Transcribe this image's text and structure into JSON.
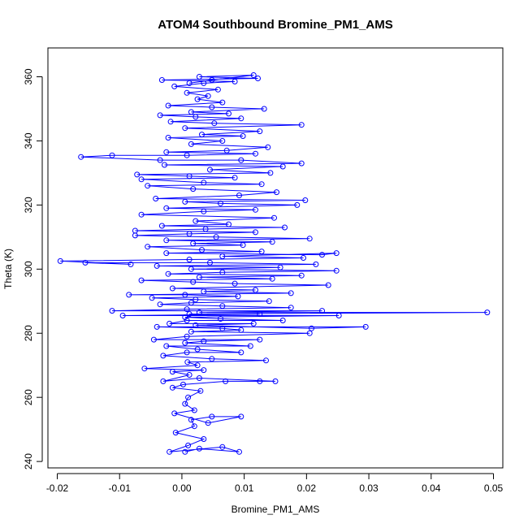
{
  "chart_data": {
    "type": "scatter",
    "title": "ATOM4 Southbound Bromine_PM1_AMS",
    "xlabel": "Bromine_PM1_AMS",
    "ylabel": "Theta (K)",
    "xlim": [
      -0.0215,
      0.0515
    ],
    "ylim": [
      238,
      369
    ],
    "x_ticks": [
      -0.02,
      -0.01,
      0,
      0.01,
      0.02,
      0.03,
      0.04,
      0.05
    ],
    "x_tick_labels": [
      "-0.02",
      "-0.01",
      "0.00",
      "0.01",
      "0.02",
      "0.03",
      "0.04",
      "0.05"
    ],
    "y_ticks": [
      240,
      260,
      280,
      300,
      320,
      340,
      360
    ],
    "y_tick_labels": [
      "240",
      "260",
      "280",
      "300",
      "320",
      "340",
      "360"
    ],
    "grid": false,
    "legend": "none",
    "marker": "open-circle",
    "connect_points": true,
    "color": "#0000ff",
    "series": [
      {
        "values": [
          [
            0.0005,
            243
          ],
          [
            0.0028,
            244
          ],
          [
            0.0092,
            243
          ],
          [
            0.0065,
            244.5
          ],
          [
            -0.002,
            243
          ],
          [
            0.001,
            245
          ],
          [
            0.0035,
            247
          ],
          [
            -0.001,
            249
          ],
          [
            0.002,
            251
          ],
          [
            0.0015,
            253
          ],
          [
            0.0048,
            254
          ],
          [
            0.0095,
            254
          ],
          [
            0.0042,
            252
          ],
          [
            -0.0012,
            255
          ],
          [
            0.002,
            256
          ],
          [
            0.0005,
            258
          ],
          [
            0.001,
            260
          ],
          [
            0.003,
            262
          ],
          [
            -0.0015,
            263
          ],
          [
            0.0002,
            264
          ],
          [
            0.007,
            265
          ],
          [
            0.0125,
            265
          ],
          [
            0.015,
            265
          ],
          [
            0.0028,
            266
          ],
          [
            -0.003,
            265
          ],
          [
            0.0012,
            267
          ],
          [
            -0.0015,
            268
          ],
          [
            0.0035,
            268.5
          ],
          [
            -0.006,
            269
          ],
          [
            0.0025,
            270
          ],
          [
            0.0009,
            271
          ],
          [
            0.0135,
            271.5
          ],
          [
            0.0048,
            272
          ],
          [
            -0.003,
            273
          ],
          [
            0.0008,
            274
          ],
          [
            0.0095,
            274
          ],
          [
            0.0025,
            275
          ],
          [
            -0.0025,
            276
          ],
          [
            0.011,
            276
          ],
          [
            0.0005,
            277
          ],
          [
            0.0035,
            277.5
          ],
          [
            0.0125,
            278
          ],
          [
            -0.0045,
            278
          ],
          [
            0.0008,
            279
          ],
          [
            0.0205,
            280
          ],
          [
            0.0015,
            280.5
          ],
          [
            0.0095,
            281
          ],
          [
            0.0065,
            281.5
          ],
          [
            -0.004,
            282
          ],
          [
            0.0295,
            282
          ],
          [
            0.0208,
            281.5
          ],
          [
            0.0022,
            282.5
          ],
          [
            0.0115,
            283
          ],
          [
            -0.002,
            283
          ],
          [
            0.0008,
            284
          ],
          [
            0.0162,
            284
          ],
          [
            0.0062,
            284.5
          ],
          [
            0.0005,
            285
          ],
          [
            0.0252,
            285.5
          ],
          [
            -0.0095,
            285.5
          ],
          [
            0.0125,
            286
          ],
          [
            0.0012,
            286
          ],
          [
            0.049,
            286.5
          ],
          [
            0.0028,
            286.5
          ],
          [
            0.0225,
            287
          ],
          [
            -0.0112,
            287
          ],
          [
            0.0008,
            287.5
          ],
          [
            0.0175,
            288
          ],
          [
            0.0065,
            288.5
          ],
          [
            -0.0035,
            289
          ],
          [
            0.0015,
            289.5
          ],
          [
            0.014,
            290
          ],
          [
            0.0022,
            290.5
          ],
          [
            -0.0048,
            291
          ],
          [
            0.009,
            291.5
          ],
          [
            0.0005,
            292
          ],
          [
            -0.0085,
            292
          ],
          [
            0.0175,
            292.5
          ],
          [
            0.0035,
            293
          ],
          [
            0.0118,
            293.5
          ],
          [
            -0.0015,
            294
          ],
          [
            0.0235,
            295
          ],
          [
            0.0085,
            295.5
          ],
          [
            0.0018,
            296
          ],
          [
            -0.0065,
            296.5
          ],
          [
            0.0145,
            297
          ],
          [
            0.0028,
            297.5
          ],
          [
            0.0192,
            298
          ],
          [
            -0.0022,
            298.5
          ],
          [
            0.0065,
            299
          ],
          [
            0.0248,
            299.5
          ],
          [
            0.0015,
            300
          ],
          [
            0.0158,
            300.5
          ],
          [
            -0.004,
            301
          ],
          [
            0.0215,
            301.5
          ],
          [
            0.0045,
            302
          ],
          [
            -0.0155,
            302
          ],
          [
            -0.0082,
            301.5
          ],
          [
            -0.0195,
            302.5
          ],
          [
            0.0012,
            303
          ],
          [
            0.0195,
            303.5
          ],
          [
            0.0065,
            304
          ],
          [
            0.0248,
            305
          ],
          [
            0.0225,
            304.5
          ],
          [
            -0.0025,
            305
          ],
          [
            0.0128,
            305.5
          ],
          [
            0.0032,
            306
          ],
          [
            -0.0055,
            307
          ],
          [
            0.0098,
            307.5
          ],
          [
            0.0018,
            308
          ],
          [
            0.0145,
            308.5
          ],
          [
            -0.0025,
            309
          ],
          [
            0.0205,
            309.5
          ],
          [
            0.0055,
            310
          ],
          [
            -0.0075,
            310.5
          ],
          [
            0.0012,
            311
          ],
          [
            0.0118,
            311.5
          ],
          [
            -0.0075,
            312
          ],
          [
            0.0038,
            312.5
          ],
          [
            0.0165,
            313
          ],
          [
            -0.0032,
            313.5
          ],
          [
            0.0075,
            314
          ],
          [
            0.0022,
            315
          ],
          [
            0.0148,
            316
          ],
          [
            -0.0065,
            317
          ],
          [
            0.0035,
            318
          ],
          [
            0.0118,
            318.5
          ],
          [
            -0.0025,
            319
          ],
          [
            0.0185,
            320
          ],
          [
            0.0062,
            320.5
          ],
          [
            0.0005,
            321
          ],
          [
            0.0198,
            321.5
          ],
          [
            -0.0042,
            322
          ],
          [
            0.0092,
            323
          ],
          [
            0.0152,
            324
          ],
          [
            0.0018,
            325
          ],
          [
            -0.0055,
            326
          ],
          [
            0.0128,
            326.5
          ],
          [
            0.0035,
            327
          ],
          [
            -0.0065,
            328
          ],
          [
            0.0085,
            328.5
          ],
          [
            0.0012,
            329
          ],
          [
            -0.0072,
            329.5
          ],
          [
            0.0142,
            330
          ],
          [
            0.0045,
            331
          ],
          [
            0.0162,
            332
          ],
          [
            -0.0028,
            332.5
          ],
          [
            0.0192,
            333
          ],
          [
            0.0095,
            334
          ],
          [
            -0.0035,
            334
          ],
          [
            -0.0162,
            335
          ],
          [
            -0.0112,
            335.5
          ],
          [
            0.0008,
            335.5
          ],
          [
            0.0118,
            336
          ],
          [
            -0.0025,
            336.5
          ],
          [
            0.0072,
            337
          ],
          [
            0.0138,
            338
          ],
          [
            0.0015,
            339
          ],
          [
            0.0065,
            340
          ],
          [
            -0.0022,
            341
          ],
          [
            0.0098,
            341.5
          ],
          [
            0.0032,
            342
          ],
          [
            0.0125,
            343
          ],
          [
            0.0005,
            344
          ],
          [
            0.0192,
            345
          ],
          [
            0.0052,
            345.5
          ],
          [
            -0.0018,
            346
          ],
          [
            0.0095,
            347
          ],
          [
            0.0022,
            347.5
          ],
          [
            -0.0035,
            348
          ],
          [
            0.0075,
            348.5
          ],
          [
            0.0015,
            349
          ],
          [
            0.0132,
            350
          ],
          [
            0.0048,
            350.5
          ],
          [
            -0.0022,
            351
          ],
          [
            0.0065,
            352
          ],
          [
            0.0025,
            353
          ],
          [
            0.0042,
            354
          ],
          [
            0.0008,
            355
          ],
          [
            0.0058,
            356
          ],
          [
            -0.0012,
            357
          ],
          [
            0.0035,
            358
          ],
          [
            0.0085,
            358.5
          ],
          [
            -0.0032,
            359
          ],
          [
            0.0122,
            359.5
          ],
          [
            0.0028,
            360
          ],
          [
            0.0115,
            360.5
          ],
          [
            0.0048,
            359
          ],
          [
            0.0012,
            358
          ]
        ]
      }
    ]
  }
}
